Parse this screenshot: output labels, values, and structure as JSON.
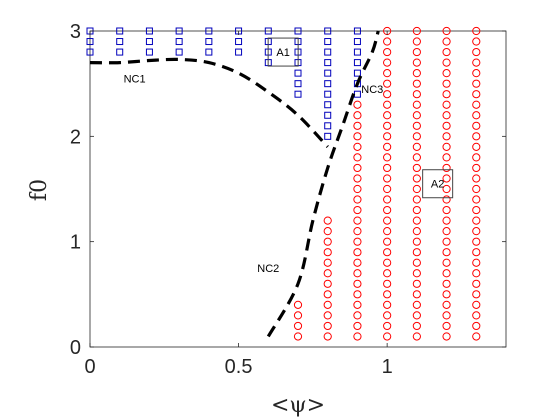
{
  "chart_data": {
    "type": "scatter",
    "xlabel": "<ψ>",
    "ylabel": "f0",
    "xlim": [
      0,
      1.4
    ],
    "ylim": [
      0,
      3
    ],
    "x_ticks": [
      0,
      0.5,
      1
    ],
    "y_ticks": [
      0,
      1,
      2,
      3
    ],
    "x_tick_labels": [
      "0",
      "0.5",
      "1"
    ],
    "y_tick_labels": [
      "0",
      "1",
      "2",
      "3"
    ],
    "grid": false,
    "y_step": 0.1,
    "colors": {
      "series_a": "#0000bb",
      "series_b": "#ff0000",
      "boundary": "#000000"
    },
    "series": [
      {
        "marker": "square",
        "color": "#0000bb",
        "columns": [
          {
            "x": 0.0,
            "y_min": 2.8,
            "y_max": 3.0
          },
          {
            "x": 0.1,
            "y_min": 2.8,
            "y_max": 3.0
          },
          {
            "x": 0.2,
            "y_min": 2.8,
            "y_max": 3.0
          },
          {
            "x": 0.3,
            "y_min": 2.8,
            "y_max": 3.0
          },
          {
            "x": 0.4,
            "y_min": 2.8,
            "y_max": 3.0
          },
          {
            "x": 0.5,
            "y_min": 2.8,
            "y_max": 3.0
          },
          {
            "x": 0.6,
            "y_min": 2.7,
            "y_max": 3.0
          },
          {
            "x": 0.7,
            "y_min": 2.4,
            "y_max": 3.0
          },
          {
            "x": 0.8,
            "y_min": 2.0,
            "y_max": 3.0
          },
          {
            "x": 0.9,
            "y_min": 2.4,
            "y_max": 3.0
          }
        ]
      },
      {
        "marker": "circle",
        "color": "#ff0000",
        "columns": [
          {
            "x": 0.7,
            "y_min": 0.1,
            "y_max": 0.4
          },
          {
            "x": 0.8,
            "y_min": 0.1,
            "y_max": 1.2
          },
          {
            "x": 0.9,
            "y_min": 0.1,
            "y_max": 2.3
          },
          {
            "x": 1.0,
            "y_min": 0.1,
            "y_max": 3.0
          },
          {
            "x": 1.1,
            "y_min": 0.1,
            "y_max": 3.0
          },
          {
            "x": 1.2,
            "y_min": 0.1,
            "y_max": 3.0
          },
          {
            "x": 1.3,
            "y_min": 0.1,
            "y_max": 3.0
          }
        ]
      }
    ],
    "curves": [
      {
        "label": "NC1",
        "style": "dashed",
        "points": [
          [
            0,
            2.7
          ],
          [
            0.1,
            2.7
          ],
          [
            0.2,
            2.72
          ],
          [
            0.3,
            2.73
          ],
          [
            0.4,
            2.7
          ],
          [
            0.5,
            2.6
          ],
          [
            0.6,
            2.42
          ],
          [
            0.7,
            2.2
          ],
          [
            0.8,
            1.9
          ]
        ]
      },
      {
        "label": "NC2",
        "style": "dashed",
        "points": [
          [
            0.6,
            0.1
          ],
          [
            0.7,
            0.6
          ],
          [
            0.75,
            1.2
          ],
          [
            0.8,
            1.7
          ],
          [
            0.85,
            2.1
          ],
          [
            0.9,
            2.5
          ],
          [
            0.95,
            2.8
          ],
          [
            0.97,
            3.0
          ]
        ]
      }
    ],
    "annotations": [
      {
        "text": "NC1",
        "x": 0.15,
        "y": 2.55,
        "boxed": false
      },
      {
        "text": "NC2",
        "x": 0.6,
        "y": 0.75,
        "boxed": false
      },
      {
        "text": "NC3",
        "x": 0.95,
        "y": 2.45,
        "boxed": false
      },
      {
        "text": "A1",
        "x": 0.65,
        "y": 2.8,
        "boxed": true
      },
      {
        "text": "A2",
        "x": 1.17,
        "y": 1.55,
        "boxed": true
      }
    ]
  }
}
